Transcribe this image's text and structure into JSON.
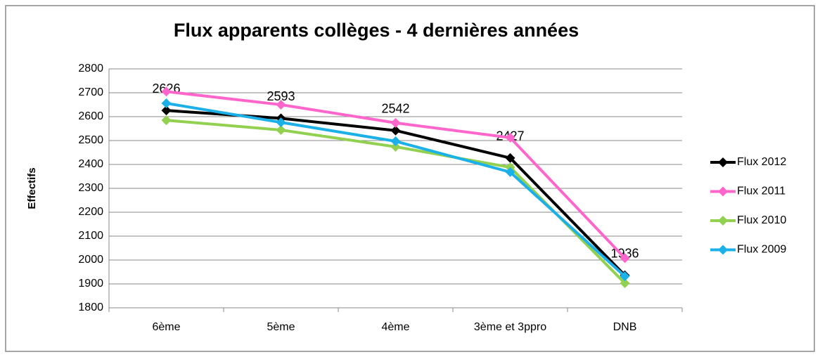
{
  "chart_data": {
    "type": "line",
    "title": "Flux apparents collèges -  4 dernières années",
    "y_label": "Effectifs",
    "categories": [
      "6ème",
      "5ème",
      "4ème",
      "3ème et 3ppro",
      "DNB"
    ],
    "series": [
      {
        "name": "Flux 2012",
        "color": "#000000",
        "values": [
          2626,
          2593,
          2542,
          2427,
          1936
        ],
        "data_labels": true
      },
      {
        "name": "Flux 2011",
        "color": "#ff66cc",
        "values": [
          2705,
          2650,
          2574,
          2512,
          2008
        ]
      },
      {
        "name": "Flux 2010",
        "color": "#92d050",
        "values": [
          2585,
          2544,
          2474,
          2388,
          1903
        ]
      },
      {
        "name": "Flux 2009",
        "color": "#1cb0e8",
        "values": [
          2656,
          2576,
          2497,
          2368,
          1932
        ]
      }
    ],
    "ylim": [
      1800,
      2800
    ],
    "yticks": [
      1800,
      1900,
      2000,
      2100,
      2200,
      2300,
      2400,
      2500,
      2600,
      2700,
      2800
    ],
    "grid": true,
    "legend": "right"
  }
}
